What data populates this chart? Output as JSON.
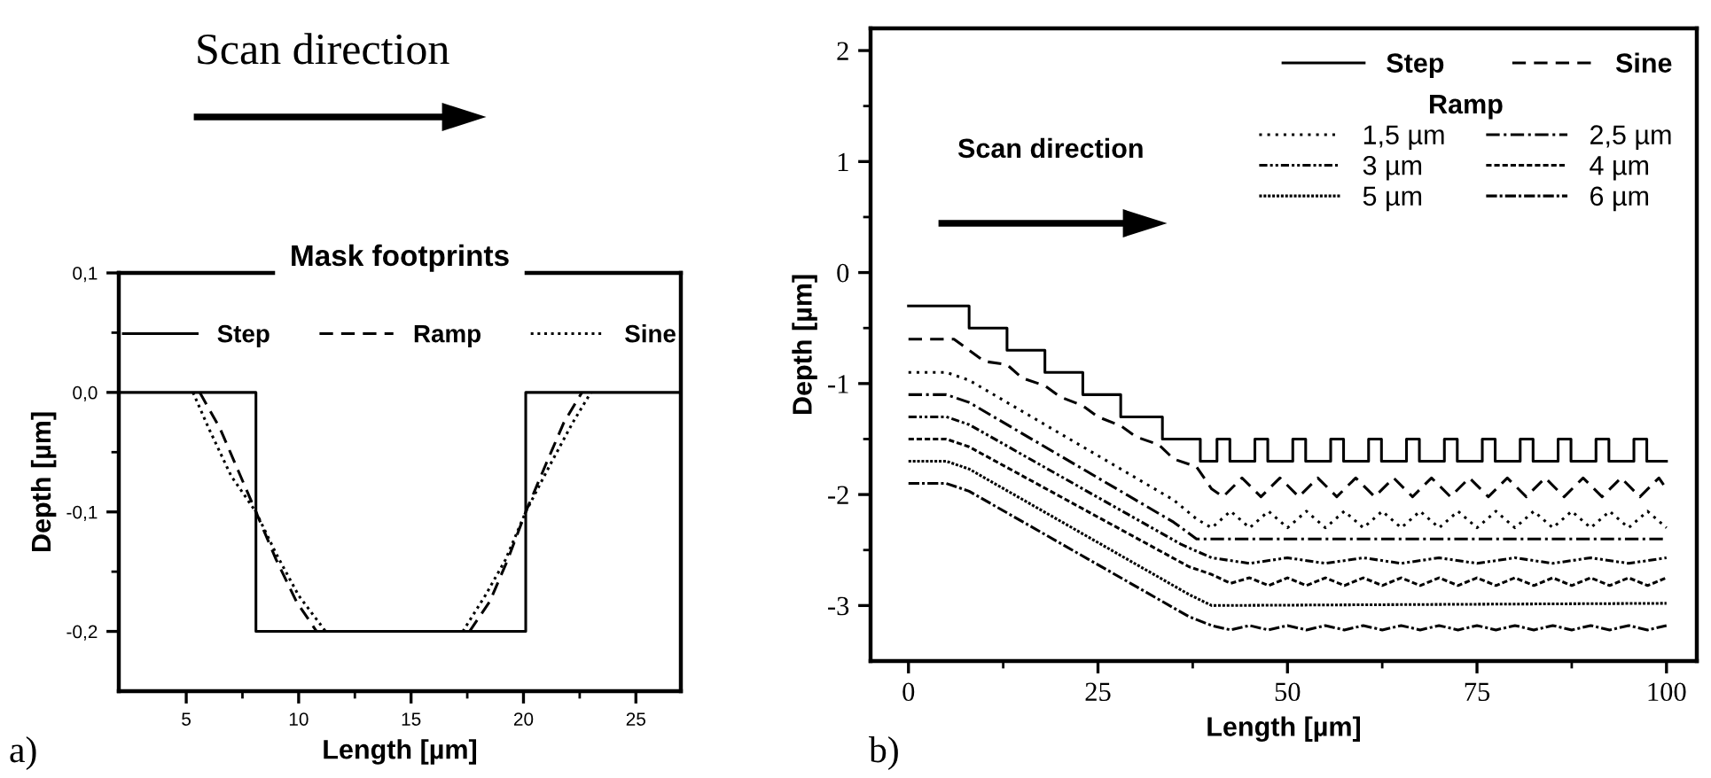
{
  "chart_data": [
    {
      "type": "line",
      "title": "Mask footprints",
      "xlabel": "Length [µm]",
      "ylabel": "Depth [µm]",
      "xlim": [
        2,
        27
      ],
      "ylim": [
        -0.25,
        0.1
      ],
      "xticks": [
        5,
        10,
        15,
        20,
        25
      ],
      "yticks": [
        {
          "value": 0.1,
          "label": "0,1"
        },
        {
          "value": 0.0,
          "label": "0,0"
        },
        {
          "value": -0.1,
          "label": "-0,1"
        },
        {
          "value": -0.2,
          "label": "-0,2"
        }
      ],
      "legend": "top",
      "grid": false,
      "annotations": [
        "Scan direction",
        "a)"
      ],
      "series": [
        {
          "name": "Step",
          "color": "#000000",
          "line_style": "solid",
          "x": [
            2,
            8.1,
            8.1,
            20.1,
            20.1,
            27
          ],
          "values": [
            0,
            0,
            -0.2,
            -0.2,
            0,
            0
          ]
        },
        {
          "name": "Ramp",
          "color": "#000000",
          "line_style": "dashed",
          "x": [
            5.6,
            6.5,
            7.3,
            8.1,
            9,
            9.9,
            10.8,
            14,
            17.6,
            18.5,
            19.3,
            20.1,
            21,
            21.8,
            22.6
          ],
          "values": [
            0,
            -0.03,
            -0.065,
            -0.1,
            -0.14,
            -0.175,
            -0.2,
            null,
            -0.2,
            -0.175,
            -0.14,
            -0.1,
            -0.06,
            -0.025,
            0
          ]
        },
        {
          "name": "Sine",
          "color": "#000000",
          "line_style": "dotted",
          "x": [
            5.3,
            6,
            7,
            8.1,
            9,
            10,
            11.2,
            14,
            17.3,
            18.3,
            19.2,
            20.1,
            21.2,
            22.2,
            23
          ],
          "values": [
            0,
            -0.03,
            -0.07,
            -0.1,
            -0.135,
            -0.17,
            -0.2,
            null,
            -0.2,
            -0.17,
            -0.14,
            -0.1,
            -0.06,
            -0.025,
            0
          ]
        }
      ]
    },
    {
      "type": "line",
      "xlabel": "Length [µm]",
      "ylabel": "Depth [µm]",
      "legend_title": "Ramp",
      "xlim": [
        -5,
        104
      ],
      "ylim": [
        -3.5,
        2.2
      ],
      "xticks": [
        0,
        25,
        50,
        75,
        100
      ],
      "yticks": [
        2,
        1,
        0,
        {
          "value": -1,
          "label": "-1"
        },
        {
          "value": -2,
          "label": "-2"
        },
        {
          "value": -3,
          "label": "-3"
        }
      ],
      "legend": "top right",
      "grid": false,
      "annotations": [
        "Scan direction",
        "b)"
      ],
      "series": [
        {
          "name": "Step",
          "color": "#000000",
          "line_style": "solid",
          "x": [
            0,
            8,
            8,
            13,
            13,
            18,
            18,
            23,
            23,
            28,
            28,
            33.5,
            33.5,
            38.5,
            38.5,
            40.7,
            40.7,
            42.4,
            42.4,
            45.7,
            45.7,
            47.4,
            47.4,
            50.7,
            50.7,
            52.4,
            52.4,
            55.7,
            55.7,
            57.4,
            57.4,
            60.7,
            60.7,
            62.4,
            62.4,
            65.7,
            65.7,
            67.4,
            67.4,
            70.7,
            70.7,
            72.4,
            72.4,
            75.7,
            75.7,
            77.4,
            77.4,
            80.7,
            80.7,
            82.4,
            82.4,
            85.7,
            85.7,
            87.4,
            87.4,
            90.7,
            90.7,
            92.4,
            92.4,
            95.7,
            95.7,
            97.4,
            97.4,
            100
          ],
          "values": [
            -0.3,
            -0.3,
            -0.5,
            -0.5,
            -0.7,
            -0.7,
            -0.9,
            -0.9,
            -1.1,
            -1.1,
            -1.3,
            -1.3,
            -1.5,
            -1.5,
            -1.7,
            -1.7,
            -1.5,
            -1.5,
            -1.7,
            -1.7,
            -1.5,
            -1.5,
            -1.7,
            -1.7,
            -1.5,
            -1.5,
            -1.7,
            -1.7,
            -1.5,
            -1.5,
            -1.7,
            -1.7,
            -1.5,
            -1.5,
            -1.7,
            -1.7,
            -1.5,
            -1.5,
            -1.7,
            -1.7,
            -1.5,
            -1.5,
            -1.7,
            -1.7,
            -1.5,
            -1.5,
            -1.7,
            -1.7,
            -1.5,
            -1.5,
            -1.7,
            -1.7,
            -1.5,
            -1.5,
            -1.7,
            -1.7,
            -1.5,
            -1.5,
            -1.7,
            -1.7,
            -1.5,
            -1.5,
            -1.7,
            -1.7
          ]
        },
        {
          "name": "Sine",
          "color": "#000000",
          "line_style": "dashed",
          "x": [
            0,
            6,
            8,
            10,
            13,
            15,
            18,
            20,
            23,
            25,
            28,
            30,
            33,
            35,
            38,
            40,
            41.5,
            44,
            46.5,
            49,
            51.5,
            54,
            56.5,
            59,
            61.5,
            64,
            66.5,
            69,
            71.5,
            74,
            76.5,
            79,
            81.5,
            84,
            86.5,
            89,
            91.5,
            94,
            96.5,
            99,
            100
          ],
          "values": [
            -0.6,
            -0.6,
            -0.7,
            -0.8,
            -0.83,
            -0.95,
            -1.02,
            -1.12,
            -1.2,
            -1.3,
            -1.38,
            -1.48,
            -1.55,
            -1.68,
            -1.75,
            -1.95,
            -2.02,
            -1.85,
            -2.02,
            -1.85,
            -2.02,
            -1.85,
            -2.02,
            -1.85,
            -2.02,
            -1.85,
            -2.02,
            -1.85,
            -2.02,
            -1.85,
            -2.02,
            -1.85,
            -2.02,
            -1.85,
            -2.02,
            -1.85,
            -2.02,
            -1.85,
            -2.02,
            -1.85,
            -1.95
          ]
        },
        {
          "name": "1,5 µm",
          "color": "#000000",
          "line_style": "dotted",
          "x": [
            0,
            5,
            8,
            35,
            38,
            40,
            42.5,
            45,
            47.5,
            50,
            52.5,
            55,
            57.5,
            60,
            62.5,
            65,
            67.5,
            70,
            72.5,
            75,
            77.5,
            80,
            82.5,
            85,
            87.5,
            90,
            92.5,
            95,
            97.5,
            100
          ],
          "values": [
            -0.9,
            -0.9,
            -0.97,
            -2.05,
            -2.22,
            -2.3,
            -2.15,
            -2.3,
            -2.15,
            -2.3,
            -2.15,
            -2.3,
            -2.15,
            -2.3,
            -2.15,
            -2.3,
            -2.15,
            -2.3,
            -2.15,
            -2.3,
            -2.15,
            -2.3,
            -2.15,
            -2.3,
            -2.15,
            -2.3,
            -2.15,
            -2.3,
            -2.15,
            -2.3
          ]
        },
        {
          "name": "2,5 µm",
          "color": "#000000",
          "line_style": "dotted",
          "x": [
            0,
            5,
            8,
            35,
            38,
            100
          ],
          "values": [
            -1.1,
            -1.1,
            -1.17,
            -2.25,
            -2.4,
            -2.4
          ]
        },
        {
          "name": "3 µm",
          "color": "#000000",
          "line_style": "dotted",
          "x": [
            0,
            5,
            8,
            36,
            40,
            45,
            50,
            55,
            60,
            65,
            70,
            75,
            80,
            85,
            90,
            95,
            100
          ],
          "values": [
            -1.3,
            -1.3,
            -1.37,
            -2.45,
            -2.57,
            -2.62,
            -2.57,
            -2.62,
            -2.57,
            -2.62,
            -2.57,
            -2.62,
            -2.57,
            -2.62,
            -2.57,
            -2.62,
            -2.57
          ]
        },
        {
          "name": "4 µm",
          "color": "#000000",
          "line_style": "dotted",
          "x": [
            0,
            5,
            8,
            37,
            40,
            42.5,
            45,
            47.5,
            50,
            52.5,
            55,
            57.5,
            60,
            62.5,
            65,
            67.5,
            70,
            72.5,
            75,
            77.5,
            80,
            82.5,
            85,
            87.5,
            90,
            92.5,
            95,
            97.5,
            100
          ],
          "values": [
            -1.5,
            -1.5,
            -1.57,
            -2.65,
            -2.72,
            -2.8,
            -2.75,
            -2.82,
            -2.75,
            -2.82,
            -2.75,
            -2.82,
            -2.75,
            -2.82,
            -2.75,
            -2.82,
            -2.75,
            -2.82,
            -2.75,
            -2.82,
            -2.75,
            -2.82,
            -2.75,
            -2.82,
            -2.75,
            -2.82,
            -2.75,
            -2.82,
            -2.75
          ]
        },
        {
          "name": "5 µm",
          "color": "#000000",
          "line_style": "dotted",
          "x": [
            0,
            5,
            8,
            37,
            40,
            100
          ],
          "values": [
            -1.7,
            -1.7,
            -1.77,
            -2.9,
            -3.0,
            -2.98
          ]
        },
        {
          "name": "6 µm",
          "color": "#000000",
          "line_style": "dotted",
          "x": [
            0,
            5,
            8,
            37,
            40,
            42.5,
            45,
            47.5,
            50,
            52.5,
            55,
            57.5,
            60,
            62.5,
            65,
            67.5,
            70,
            72.5,
            75,
            77.5,
            80,
            82.5,
            85,
            87.5,
            90,
            92.5,
            95,
            97.5,
            100
          ],
          "values": [
            -1.9,
            -1.9,
            -1.97,
            -3.1,
            -3.18,
            -3.22,
            -3.18,
            -3.22,
            -3.18,
            -3.22,
            -3.18,
            -3.22,
            -3.18,
            -3.22,
            -3.18,
            -3.22,
            -3.18,
            -3.22,
            -3.18,
            -3.22,
            -3.18,
            -3.22,
            -3.18,
            -3.22,
            -3.18,
            -3.22,
            -3.18,
            -3.22,
            -3.18
          ]
        }
      ]
    }
  ]
}
